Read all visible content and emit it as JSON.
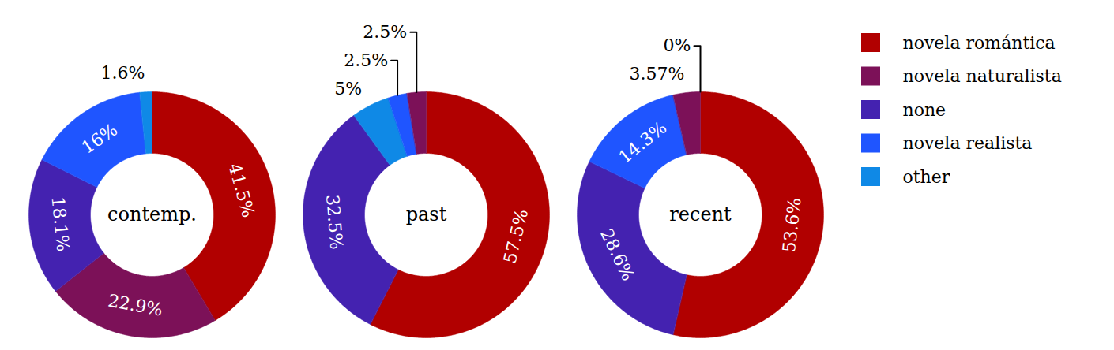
{
  "chart_data": [
    {
      "type": "donut",
      "title": "contemp.",
      "categories": [
        "novela romántica",
        "novela naturalista",
        "none",
        "novela realista",
        "other"
      ],
      "values": [
        41.5,
        22.9,
        18.1,
        16,
        1.6
      ],
      "value_labels": [
        "41.5%",
        "22.9%",
        "18.1%",
        "16%",
        "1.6%"
      ],
      "colors": [
        "#b10000",
        "#7c1158",
        "#4422b0",
        "#1f55ff",
        "#0f89e6"
      ],
      "data_labels": true,
      "legend": "right"
    },
    {
      "type": "donut",
      "title": "past",
      "categories": [
        "novela romántica",
        "none",
        "other",
        "novela realista",
        "novela naturalista"
      ],
      "values": [
        57.5,
        32.5,
        5,
        2.5,
        2.5
      ],
      "value_labels": [
        "57.5%",
        "32.5%",
        "5%",
        "2.5%",
        "2.5%"
      ],
      "colors": [
        "#b10000",
        "#4422b0",
        "#0f89e6",
        "#1f55ff",
        "#7c1158"
      ],
      "data_labels": true,
      "legend": "right"
    },
    {
      "type": "donut",
      "title": "recent",
      "categories": [
        "novela romántica",
        "none",
        "novela realista",
        "novela naturalista",
        "other"
      ],
      "values": [
        53.6,
        28.6,
        14.3,
        3.57,
        0
      ],
      "value_labels": [
        "53.6%",
        "28.6%",
        "14.3%",
        "3.57%",
        "0%"
      ],
      "colors": [
        "#b10000",
        "#4422b0",
        "#1f55ff",
        "#7c1158",
        "#0f89e6"
      ],
      "data_labels": true,
      "legend": "right"
    }
  ]
}
